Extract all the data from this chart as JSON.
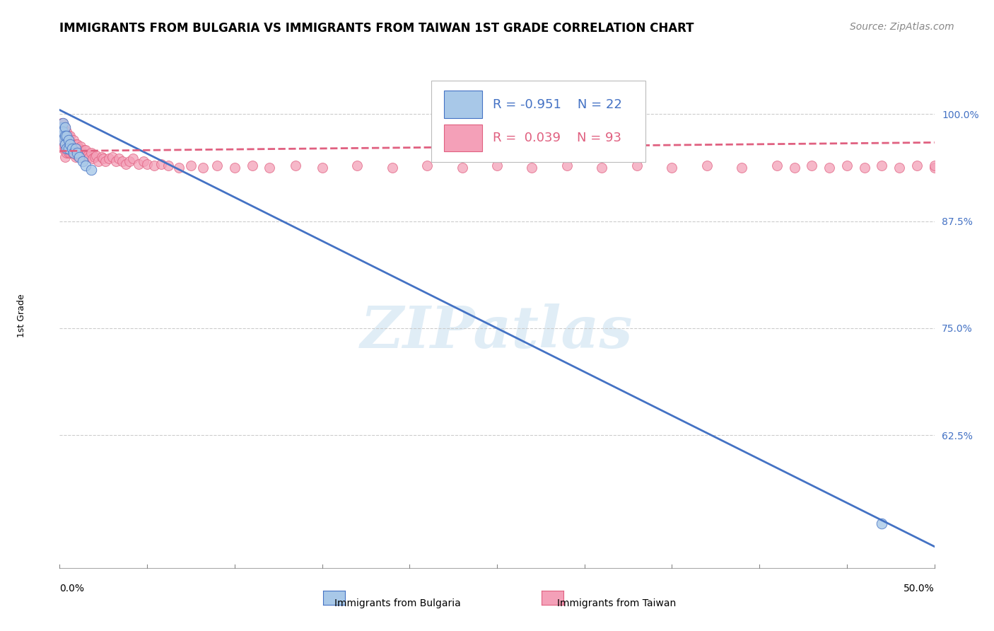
{
  "title": "IMMIGRANTS FROM BULGARIA VS IMMIGRANTS FROM TAIWAN 1ST GRADE CORRELATION CHART",
  "source": "Source: ZipAtlas.com",
  "ylabel": "1st Grade",
  "xlim": [
    0.0,
    0.5
  ],
  "ylim": [
    0.47,
    1.045
  ],
  "right_ytick_labels": [
    "62.5%",
    "75.0%",
    "87.5%",
    "100.0%"
  ],
  "right_ytick_vals": [
    0.625,
    0.75,
    0.875,
    1.0
  ],
  "bulgaria_R": -0.951,
  "bulgaria_N": 22,
  "taiwan_R": 0.039,
  "taiwan_N": 93,
  "bulgaria_color": "#a8c8e8",
  "taiwan_color": "#f4a0b8",
  "bulgaria_line_color": "#4472c4",
  "taiwan_line_color": "#e06080",
  "watermark_text": "ZIPatlas",
  "bulgaria_scatter_x": [
    0.001,
    0.001,
    0.002,
    0.002,
    0.002,
    0.003,
    0.003,
    0.003,
    0.004,
    0.004,
    0.005,
    0.005,
    0.006,
    0.007,
    0.008,
    0.009,
    0.01,
    0.011,
    0.013,
    0.015,
    0.018,
    0.47
  ],
  "bulgaria_scatter_y": [
    0.985,
    0.975,
    0.99,
    0.98,
    0.97,
    0.985,
    0.975,
    0.965,
    0.975,
    0.96,
    0.97,
    0.96,
    0.965,
    0.96,
    0.955,
    0.96,
    0.955,
    0.95,
    0.945,
    0.94,
    0.935,
    0.522
  ],
  "taiwan_scatter_x": [
    0.001,
    0.001,
    0.001,
    0.001,
    0.002,
    0.002,
    0.002,
    0.002,
    0.002,
    0.003,
    0.003,
    0.003,
    0.003,
    0.003,
    0.004,
    0.004,
    0.004,
    0.005,
    0.005,
    0.005,
    0.006,
    0.006,
    0.006,
    0.007,
    0.007,
    0.008,
    0.008,
    0.009,
    0.009,
    0.01,
    0.01,
    0.011,
    0.012,
    0.012,
    0.013,
    0.014,
    0.015,
    0.016,
    0.017,
    0.018,
    0.019,
    0.02,
    0.021,
    0.022,
    0.024,
    0.025,
    0.026,
    0.028,
    0.03,
    0.032,
    0.034,
    0.036,
    0.038,
    0.04,
    0.042,
    0.045,
    0.048,
    0.05,
    0.054,
    0.058,
    0.062,
    0.068,
    0.075,
    0.082,
    0.09,
    0.1,
    0.11,
    0.12,
    0.135,
    0.15,
    0.17,
    0.19,
    0.21,
    0.23,
    0.25,
    0.27,
    0.29,
    0.31,
    0.33,
    0.35,
    0.37,
    0.39,
    0.41,
    0.42,
    0.43,
    0.44,
    0.45,
    0.46,
    0.47,
    0.48,
    0.49,
    0.5,
    0.5
  ],
  "taiwan_scatter_y": [
    0.99,
    0.985,
    0.975,
    0.965,
    0.99,
    0.985,
    0.975,
    0.965,
    0.96,
    0.985,
    0.975,
    0.97,
    0.96,
    0.95,
    0.98,
    0.97,
    0.955,
    0.975,
    0.965,
    0.955,
    0.975,
    0.965,
    0.955,
    0.965,
    0.955,
    0.97,
    0.955,
    0.965,
    0.95,
    0.965,
    0.952,
    0.96,
    0.962,
    0.95,
    0.955,
    0.958,
    0.958,
    0.952,
    0.95,
    0.955,
    0.948,
    0.95,
    0.952,
    0.945,
    0.95,
    0.948,
    0.945,
    0.948,
    0.95,
    0.945,
    0.948,
    0.945,
    0.942,
    0.945,
    0.948,
    0.942,
    0.945,
    0.942,
    0.94,
    0.942,
    0.94,
    0.938,
    0.94,
    0.938,
    0.94,
    0.938,
    0.94,
    0.938,
    0.94,
    0.938,
    0.94,
    0.938,
    0.94,
    0.938,
    0.94,
    0.938,
    0.94,
    0.938,
    0.94,
    0.938,
    0.94,
    0.938,
    0.94,
    0.938,
    0.94,
    0.938,
    0.94,
    0.938,
    0.94,
    0.938,
    0.94,
    0.938,
    0.94
  ],
  "bul_line_x": [
    0.0,
    0.5
  ],
  "bul_line_y": [
    1.005,
    0.495
  ],
  "tw_line_x": [
    0.0,
    0.5
  ],
  "tw_line_y": [
    0.957,
    0.967
  ],
  "grid_color": "#cccccc",
  "bg_color": "#ffffff",
  "title_fontsize": 12,
  "source_fontsize": 10,
  "axis_label_fontsize": 9,
  "tick_label_fontsize": 10,
  "legend_fontsize": 13,
  "right_label_color": "#4472c4"
}
